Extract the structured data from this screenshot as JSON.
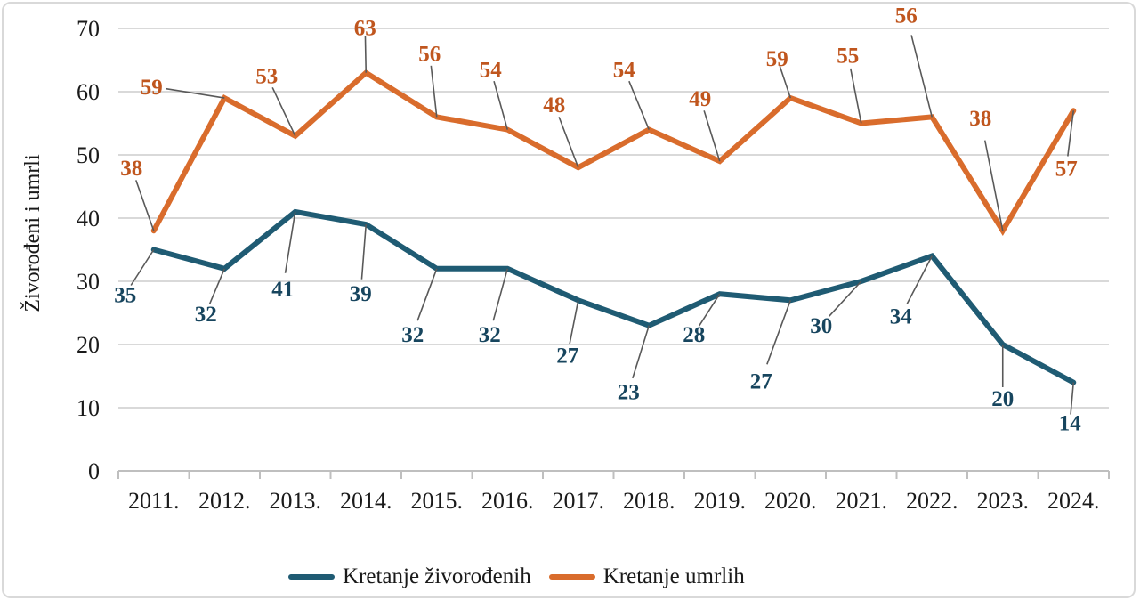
{
  "chart_data": {
    "type": "line",
    "title": "",
    "xlabel": "",
    "ylabel": "Živorođeni i umrli",
    "categories": [
      "2011.",
      "2012.",
      "2013.",
      "2014.",
      "2015.",
      "2016.",
      "2017.",
      "2018.",
      "2019.",
      "2020.",
      "2021.",
      "2022.",
      "2023.",
      "2024."
    ],
    "y_ticks": [
      0,
      10,
      20,
      30,
      40,
      50,
      60,
      70
    ],
    "ylim": [
      0,
      70
    ],
    "grid": "horizontal",
    "legend_position": "bottom",
    "series": [
      {
        "id": "zivorodjeni",
        "name": "Kretanje živorođenih",
        "color": "#1f5b73",
        "label_color": "#17455e",
        "values": [
          35,
          32,
          41,
          39,
          32,
          32,
          27,
          23,
          28,
          27,
          30,
          34,
          20,
          14
        ],
        "label_offsets": [
          [
            -32,
            50
          ],
          [
            -21,
            50
          ],
          [
            -14,
            86
          ],
          [
            -6,
            77
          ],
          [
            -27,
            73
          ],
          [
            -20,
            73
          ],
          [
            -12,
            61
          ],
          [
            -23,
            74
          ],
          [
            -29,
            45
          ],
          [
            -33,
            90
          ],
          [
            -45,
            49
          ],
          [
            -35,
            67
          ],
          [
            0,
            60
          ],
          [
            -4,
            45
          ]
        ]
      },
      {
        "id": "umrli",
        "name": "Kretanje umrlih",
        "color": "#d96c2c",
        "label_color": "#c0561e",
        "values": [
          38,
          59,
          53,
          63,
          56,
          54,
          48,
          54,
          49,
          59,
          55,
          56,
          38,
          57
        ],
        "label_offsets": [
          [
            -25,
            -71
          ],
          [
            -82,
            -13
          ],
          [
            -32,
            -68
          ],
          [
            -1,
            -51
          ],
          [
            -8,
            -72
          ],
          [
            -19,
            -68
          ],
          [
            -27,
            -71
          ],
          [
            -28,
            -68
          ],
          [
            -22,
            -71
          ],
          [
            -15,
            -45
          ],
          [
            -15,
            -77
          ],
          [
            -29,
            -115
          ],
          [
            -25,
            -127
          ],
          [
            -8,
            64
          ]
        ]
      }
    ]
  },
  "colors": {
    "background": "#ffffff",
    "border": "#d9d9d9",
    "gridline": "#d9d9d9",
    "axis": "#bfbfbf",
    "leader": "#595959",
    "tick_text": "#1a1a1a"
  }
}
